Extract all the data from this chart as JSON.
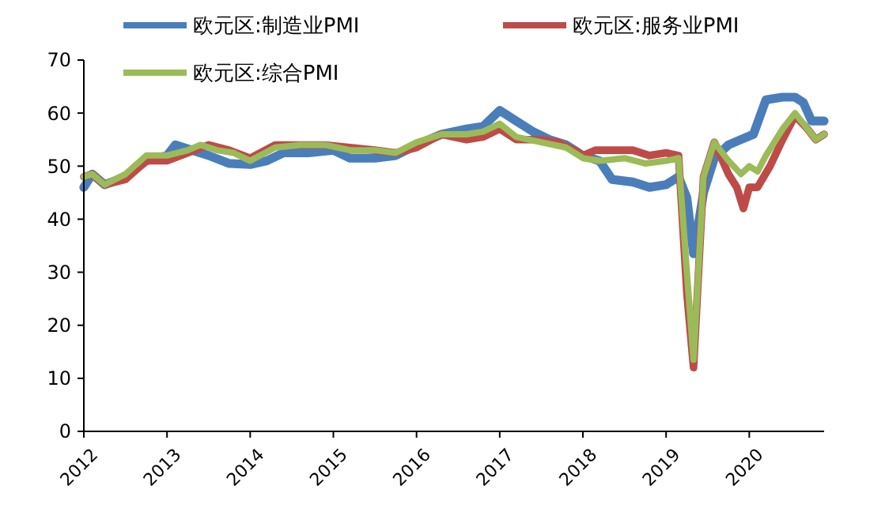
{
  "chart_data": {
    "type": "line",
    "xlim": [
      2012,
      2020.9
    ],
    "xticks": [
      2012,
      2013,
      2014,
      2015,
      2016,
      2017,
      2018,
      2019,
      2020
    ],
    "ylim": [
      0,
      70
    ],
    "yticks": [
      0,
      10,
      20,
      30,
      40,
      50,
      60,
      70
    ],
    "legend": "top",
    "grid": false,
    "line_style": "solid",
    "series": [
      {
        "name": "欧元区:制造业PMI",
        "color": "#4a7ebb",
        "x": [
          2012,
          2012.1,
          2012.25,
          2012.5,
          2012.75,
          2013,
          2013.1,
          2013.3,
          2013.5,
          2013.75,
          2014,
          2014.2,
          2014.4,
          2014.7,
          2015,
          2015.2,
          2015.5,
          2015.75,
          2016,
          2016.3,
          2016.6,
          2016.8,
          2017,
          2017.2,
          2017.4,
          2017.6,
          2017.8,
          2018,
          2018.2,
          2018.35,
          2018.6,
          2018.8,
          2019,
          2019.15,
          2019.25,
          2019.33,
          2019.45,
          2019.58,
          2019.75,
          2019.9,
          2020.05,
          2020.2,
          2020.4,
          2020.55,
          2020.65,
          2020.75,
          2020.9
        ],
        "values": [
          46,
          48.5,
          46.5,
          48,
          51,
          52,
          54,
          53,
          52,
          50.5,
          50.3,
          51,
          52.5,
          52.5,
          53,
          51.5,
          51.5,
          52,
          54,
          56,
          57,
          57.5,
          60.5,
          58.5,
          56.5,
          55,
          54,
          52,
          51,
          47.5,
          47,
          46,
          46.5,
          48,
          44,
          33.5,
          45,
          51.5,
          54,
          55,
          56,
          62.5,
          63,
          63,
          62,
          58.5,
          58.5
        ]
      },
      {
        "name": "欧元区:服务业PMI",
        "color": "#be4b48",
        "x": [
          2012,
          2012.1,
          2012.25,
          2012.5,
          2012.75,
          2013,
          2013.25,
          2013.5,
          2013.75,
          2014,
          2014.3,
          2014.6,
          2014.9,
          2015.2,
          2015.5,
          2015.75,
          2016,
          2016.3,
          2016.6,
          2016.8,
          2017,
          2017.2,
          2017.5,
          2017.7,
          2017.9,
          2018,
          2018.15,
          2018.4,
          2018.6,
          2018.8,
          2019,
          2019.15,
          2019.25,
          2019.33,
          2019.45,
          2019.58,
          2019.75,
          2019.85,
          2019.93,
          2020,
          2020.1,
          2020.25,
          2020.4,
          2020.55,
          2020.7,
          2020.8,
          2020.9
        ],
        "values": [
          48,
          48.5,
          46.5,
          47.5,
          51,
          51,
          52.5,
          54,
          53,
          51.5,
          54,
          54,
          54,
          53.5,
          53,
          52.5,
          53.5,
          56,
          55,
          55.5,
          57,
          55,
          55,
          54.5,
          53,
          52,
          53,
          53,
          53,
          52,
          52.5,
          52,
          26,
          12,
          48,
          54.5,
          48.5,
          46,
          42,
          46,
          46,
          50,
          55,
          59.5,
          57,
          55,
          56
        ]
      },
      {
        "name": "欧元区:综合PMI",
        "color": "#9bbb59",
        "x": [
          2012,
          2012.1,
          2012.25,
          2012.5,
          2012.75,
          2013,
          2013.25,
          2013.4,
          2013.6,
          2013.8,
          2014,
          2014.3,
          2014.6,
          2014.9,
          2015.2,
          2015.5,
          2015.75,
          2016,
          2016.3,
          2016.6,
          2016.8,
          2017,
          2017.2,
          2017.5,
          2017.8,
          2018,
          2018.2,
          2018.5,
          2018.75,
          2019,
          2019.15,
          2019.25,
          2019.33,
          2019.45,
          2019.58,
          2019.75,
          2019.9,
          2020,
          2020.1,
          2020.2,
          2020.4,
          2020.55,
          2020.7,
          2020.8,
          2020.9
        ],
        "values": [
          48,
          48.5,
          46.5,
          48.5,
          52,
          52,
          53,
          54,
          53,
          52.5,
          51,
          53.5,
          54,
          54,
          53,
          53,
          52.5,
          54.5,
          56,
          56,
          56.5,
          58,
          55.5,
          54.5,
          53.5,
          51.5,
          51,
          51.5,
          50.5,
          51,
          51.5,
          30,
          13.5,
          48,
          54.5,
          51,
          48.5,
          50,
          49,
          52,
          57,
          60,
          57,
          55,
          56
        ]
      }
    ]
  }
}
